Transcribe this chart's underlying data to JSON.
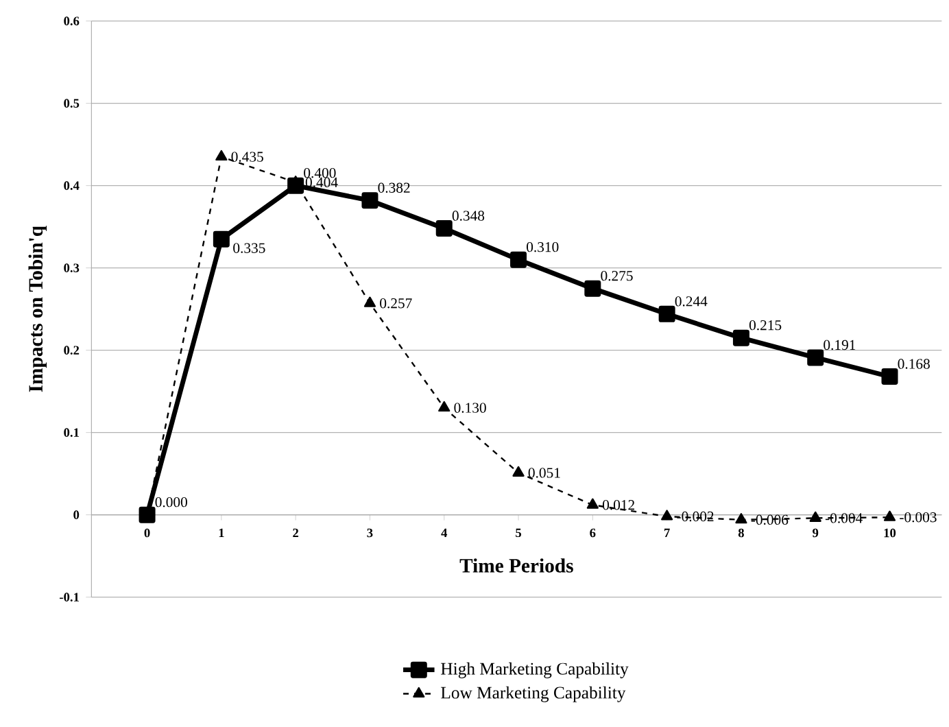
{
  "chart_data": {
    "type": "line",
    "xlabel": "Time Periods",
    "ylabel": "Impacts on Tobin'q",
    "categories": [
      "0",
      "1",
      "2",
      "3",
      "4",
      "5",
      "6",
      "7",
      "8",
      "9",
      "10"
    ],
    "ylim": [
      -0.1,
      0.6
    ],
    "yticks": [
      -0.1,
      0,
      0.1,
      0.2,
      0.3,
      0.4,
      0.5,
      0.6
    ],
    "grid": "y",
    "legend": "bottom",
    "series": [
      {
        "name": "High Marketing Capability",
        "color": "#000000",
        "marker": "square",
        "line_style": "solid",
        "values": [
          0.0,
          0.335,
          0.4,
          0.382,
          0.348,
          0.31,
          0.275,
          0.244,
          0.215,
          0.191,
          0.168
        ],
        "value_labels": [
          "0.000",
          "0.335",
          "0.400",
          "0.382",
          "0.348",
          "0.310",
          "0.275",
          "0.244",
          "0.215",
          "0.191",
          "0.168"
        ]
      },
      {
        "name": "Low Marketing Capability",
        "color": "#000000",
        "marker": "triangle",
        "line_style": "dashed",
        "values": [
          0.0,
          0.435,
          0.404,
          0.257,
          0.13,
          0.051,
          0.012,
          -0.002,
          -0.006,
          -0.004,
          -0.003
        ],
        "value_labels": [
          null,
          "0.435",
          "0.404",
          "0.257",
          "0.130",
          "0.051",
          "0.012",
          "-0.002",
          "-0.006",
          "-0.004",
          "-0.003"
        ]
      }
    ]
  }
}
